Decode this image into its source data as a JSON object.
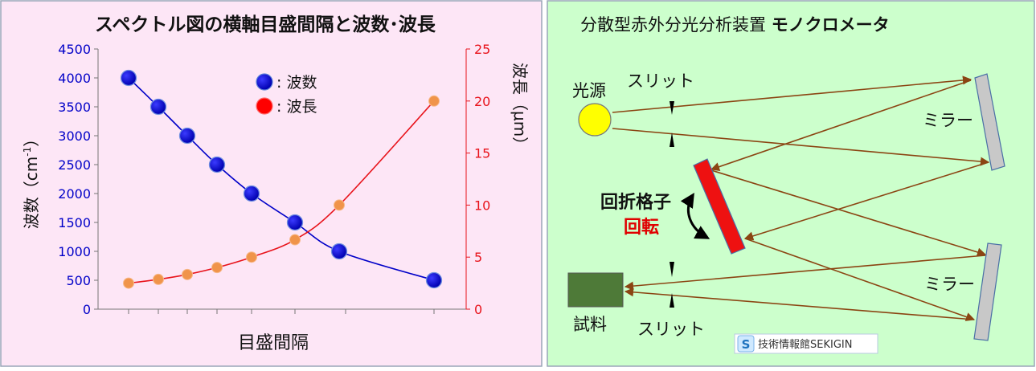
{
  "left_panel": {
    "title": "スペクトル図の横軸目盛間隔と波数･波長",
    "y_left_label": "波数（cm",
    "y_left_label_sup": "-1",
    "y_left_label_close": "）",
    "y_right_label": "波長（μm）",
    "x_label": "目盛間隔",
    "legend": [
      {
        "marker": "blue-dot",
        "label": ": 波数"
      },
      {
        "marker": "red-dot",
        "label": ": 波長"
      }
    ],
    "colors": {
      "background": "#fde6f6",
      "wavenumber": "#0000c8",
      "wavelength": "#e8131b",
      "wavelength_marker": "#f0944a"
    }
  },
  "right_panel": {
    "title": "分散型赤外分光分析装置",
    "title_bold": "モノクロメータ",
    "labels": {
      "light_source": "光源",
      "slit_top": "スリット",
      "slit_bottom": "スリット",
      "mirror_top": "ミラー",
      "mirror_bottom": "ミラー",
      "grating": "回折格子",
      "rotation": "回転",
      "sample": "試料"
    },
    "watermark_icon": "S",
    "watermark": "技術情報館SEKIGIN",
    "colors": {
      "background": "#ccffcc",
      "beam": "#8b4513",
      "grating": "#ee1111",
      "sample": "#4e7a38",
      "source": "#ffff00",
      "mirror": "#c8c8c8"
    }
  },
  "chart_data": {
    "type": "line",
    "x": [
      1,
      2,
      3,
      4,
      5,
      6,
      7,
      8
    ],
    "xlabel": "目盛間隔",
    "series": [
      {
        "name": "波数",
        "axis": "left",
        "x": [
          1,
          2,
          3,
          4,
          5,
          6,
          7,
          8
        ],
        "values": [
          4000,
          3500,
          3000,
          2500,
          2000,
          1500,
          1000,
          500
        ]
      },
      {
        "name": "波長",
        "axis": "right",
        "x": [
          1,
          2,
          3,
          4,
          5,
          6,
          7,
          8
        ],
        "values": [
          2.5,
          2.86,
          3.33,
          4,
          5,
          6.67,
          10,
          20
        ]
      }
    ],
    "y_left": {
      "label": "波数（cm-1）",
      "ticks": [
        0,
        500,
        1000,
        1500,
        2000,
        2500,
        3000,
        3500,
        4000,
        4500
      ],
      "range": [
        0,
        4500
      ]
    },
    "y_right": {
      "label": "波長（μm）",
      "ticks": [
        0,
        5,
        10,
        15,
        20,
        25
      ],
      "range": [
        0,
        25
      ]
    },
    "grid": false,
    "legend_position": "top-center"
  }
}
